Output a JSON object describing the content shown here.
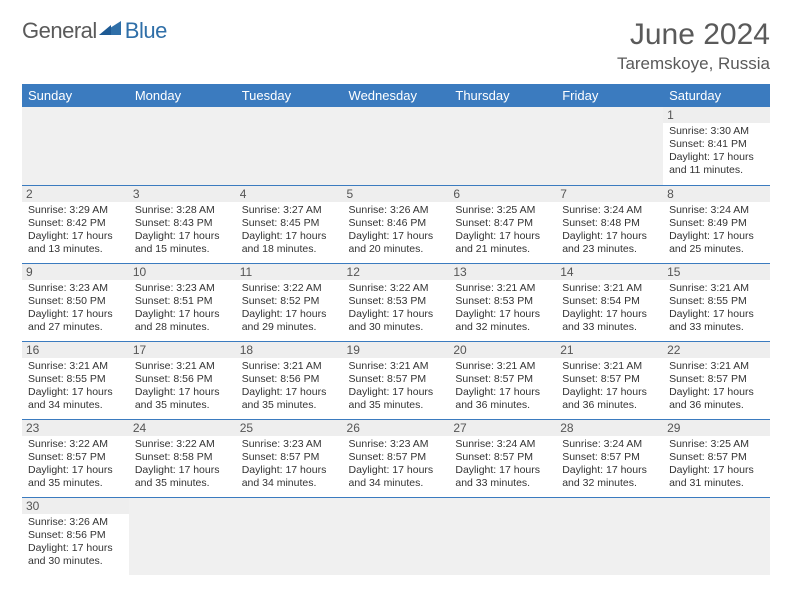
{
  "brand": {
    "part1": "General",
    "part2": "Blue"
  },
  "title": "June 2024",
  "location": "Taremskoye, Russia",
  "columns": [
    "Sunday",
    "Monday",
    "Tuesday",
    "Wednesday",
    "Thursday",
    "Friday",
    "Saturday"
  ],
  "colors": {
    "header_bg": "#3b7bbf",
    "header_fg": "#ffffff",
    "daynum_bg": "#eeeeee",
    "row_border": "#3b7bbf",
    "brand_gray": "#5a5a5a",
    "brand_blue": "#2f6fa8"
  },
  "weeks": [
    [
      null,
      null,
      null,
      null,
      null,
      null,
      {
        "n": "1",
        "sr": "Sunrise: 3:30 AM",
        "ss": "Sunset: 8:41 PM",
        "d1": "Daylight: 17 hours",
        "d2": "and 11 minutes."
      }
    ],
    [
      {
        "n": "2",
        "sr": "Sunrise: 3:29 AM",
        "ss": "Sunset: 8:42 PM",
        "d1": "Daylight: 17 hours",
        "d2": "and 13 minutes."
      },
      {
        "n": "3",
        "sr": "Sunrise: 3:28 AM",
        "ss": "Sunset: 8:43 PM",
        "d1": "Daylight: 17 hours",
        "d2": "and 15 minutes."
      },
      {
        "n": "4",
        "sr": "Sunrise: 3:27 AM",
        "ss": "Sunset: 8:45 PM",
        "d1": "Daylight: 17 hours",
        "d2": "and 18 minutes."
      },
      {
        "n": "5",
        "sr": "Sunrise: 3:26 AM",
        "ss": "Sunset: 8:46 PM",
        "d1": "Daylight: 17 hours",
        "d2": "and 20 minutes."
      },
      {
        "n": "6",
        "sr": "Sunrise: 3:25 AM",
        "ss": "Sunset: 8:47 PM",
        "d1": "Daylight: 17 hours",
        "d2": "and 21 minutes."
      },
      {
        "n": "7",
        "sr": "Sunrise: 3:24 AM",
        "ss": "Sunset: 8:48 PM",
        "d1": "Daylight: 17 hours",
        "d2": "and 23 minutes."
      },
      {
        "n": "8",
        "sr": "Sunrise: 3:24 AM",
        "ss": "Sunset: 8:49 PM",
        "d1": "Daylight: 17 hours",
        "d2": "and 25 minutes."
      }
    ],
    [
      {
        "n": "9",
        "sr": "Sunrise: 3:23 AM",
        "ss": "Sunset: 8:50 PM",
        "d1": "Daylight: 17 hours",
        "d2": "and 27 minutes."
      },
      {
        "n": "10",
        "sr": "Sunrise: 3:23 AM",
        "ss": "Sunset: 8:51 PM",
        "d1": "Daylight: 17 hours",
        "d2": "and 28 minutes."
      },
      {
        "n": "11",
        "sr": "Sunrise: 3:22 AM",
        "ss": "Sunset: 8:52 PM",
        "d1": "Daylight: 17 hours",
        "d2": "and 29 minutes."
      },
      {
        "n": "12",
        "sr": "Sunrise: 3:22 AM",
        "ss": "Sunset: 8:53 PM",
        "d1": "Daylight: 17 hours",
        "d2": "and 30 minutes."
      },
      {
        "n": "13",
        "sr": "Sunrise: 3:21 AM",
        "ss": "Sunset: 8:53 PM",
        "d1": "Daylight: 17 hours",
        "d2": "and 32 minutes."
      },
      {
        "n": "14",
        "sr": "Sunrise: 3:21 AM",
        "ss": "Sunset: 8:54 PM",
        "d1": "Daylight: 17 hours",
        "d2": "and 33 minutes."
      },
      {
        "n": "15",
        "sr": "Sunrise: 3:21 AM",
        "ss": "Sunset: 8:55 PM",
        "d1": "Daylight: 17 hours",
        "d2": "and 33 minutes."
      }
    ],
    [
      {
        "n": "16",
        "sr": "Sunrise: 3:21 AM",
        "ss": "Sunset: 8:55 PM",
        "d1": "Daylight: 17 hours",
        "d2": "and 34 minutes."
      },
      {
        "n": "17",
        "sr": "Sunrise: 3:21 AM",
        "ss": "Sunset: 8:56 PM",
        "d1": "Daylight: 17 hours",
        "d2": "and 35 minutes."
      },
      {
        "n": "18",
        "sr": "Sunrise: 3:21 AM",
        "ss": "Sunset: 8:56 PM",
        "d1": "Daylight: 17 hours",
        "d2": "and 35 minutes."
      },
      {
        "n": "19",
        "sr": "Sunrise: 3:21 AM",
        "ss": "Sunset: 8:57 PM",
        "d1": "Daylight: 17 hours",
        "d2": "and 35 minutes."
      },
      {
        "n": "20",
        "sr": "Sunrise: 3:21 AM",
        "ss": "Sunset: 8:57 PM",
        "d1": "Daylight: 17 hours",
        "d2": "and 36 minutes."
      },
      {
        "n": "21",
        "sr": "Sunrise: 3:21 AM",
        "ss": "Sunset: 8:57 PM",
        "d1": "Daylight: 17 hours",
        "d2": "and 36 minutes."
      },
      {
        "n": "22",
        "sr": "Sunrise: 3:21 AM",
        "ss": "Sunset: 8:57 PM",
        "d1": "Daylight: 17 hours",
        "d2": "and 36 minutes."
      }
    ],
    [
      {
        "n": "23",
        "sr": "Sunrise: 3:22 AM",
        "ss": "Sunset: 8:57 PM",
        "d1": "Daylight: 17 hours",
        "d2": "and 35 minutes."
      },
      {
        "n": "24",
        "sr": "Sunrise: 3:22 AM",
        "ss": "Sunset: 8:58 PM",
        "d1": "Daylight: 17 hours",
        "d2": "and 35 minutes."
      },
      {
        "n": "25",
        "sr": "Sunrise: 3:23 AM",
        "ss": "Sunset: 8:57 PM",
        "d1": "Daylight: 17 hours",
        "d2": "and 34 minutes."
      },
      {
        "n": "26",
        "sr": "Sunrise: 3:23 AM",
        "ss": "Sunset: 8:57 PM",
        "d1": "Daylight: 17 hours",
        "d2": "and 34 minutes."
      },
      {
        "n": "27",
        "sr": "Sunrise: 3:24 AM",
        "ss": "Sunset: 8:57 PM",
        "d1": "Daylight: 17 hours",
        "d2": "and 33 minutes."
      },
      {
        "n": "28",
        "sr": "Sunrise: 3:24 AM",
        "ss": "Sunset: 8:57 PM",
        "d1": "Daylight: 17 hours",
        "d2": "and 32 minutes."
      },
      {
        "n": "29",
        "sr": "Sunrise: 3:25 AM",
        "ss": "Sunset: 8:57 PM",
        "d1": "Daylight: 17 hours",
        "d2": "and 31 minutes."
      }
    ],
    [
      {
        "n": "30",
        "sr": "Sunrise: 3:26 AM",
        "ss": "Sunset: 8:56 PM",
        "d1": "Daylight: 17 hours",
        "d2": "and 30 minutes."
      },
      null,
      null,
      null,
      null,
      null,
      null
    ]
  ]
}
